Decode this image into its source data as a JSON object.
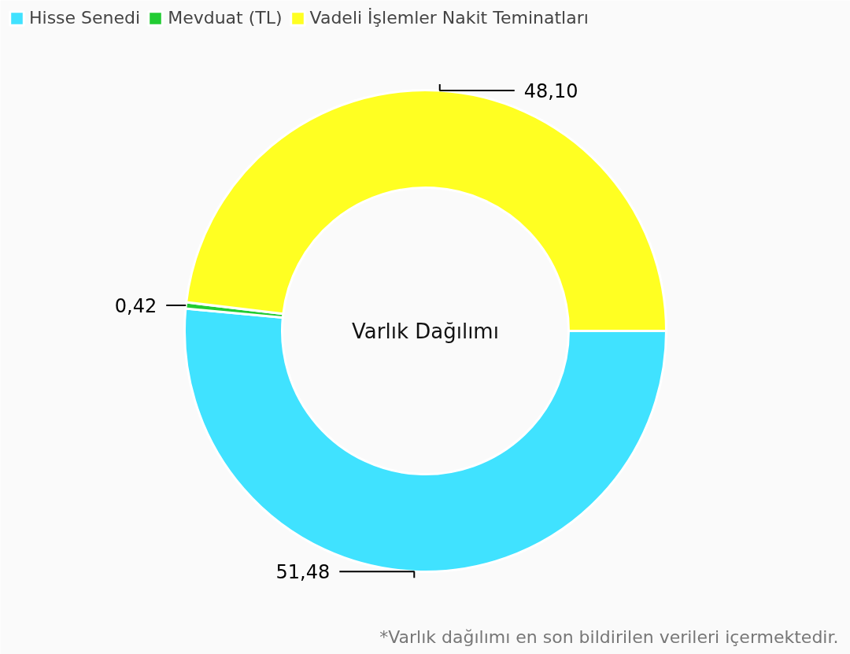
{
  "chart_data": {
    "type": "donut",
    "title": "Varlık Dağılımı",
    "categories": [
      "Hisse Senedi",
      "Mevduat (TL)",
      "Vadeli İşlemler Nakit Teminatları"
    ],
    "values": [
      51.48,
      0.42,
      48.1
    ],
    "colors": [
      "#40e2ff",
      "#22cc33",
      "#ffff22"
    ],
    "value_labels": [
      "51,48",
      "0,42",
      "48,10"
    ],
    "legend": "top left",
    "annotations": [
      "*Varlık dağılımı en son bildirilen verileri içermektedir."
    ]
  }
}
